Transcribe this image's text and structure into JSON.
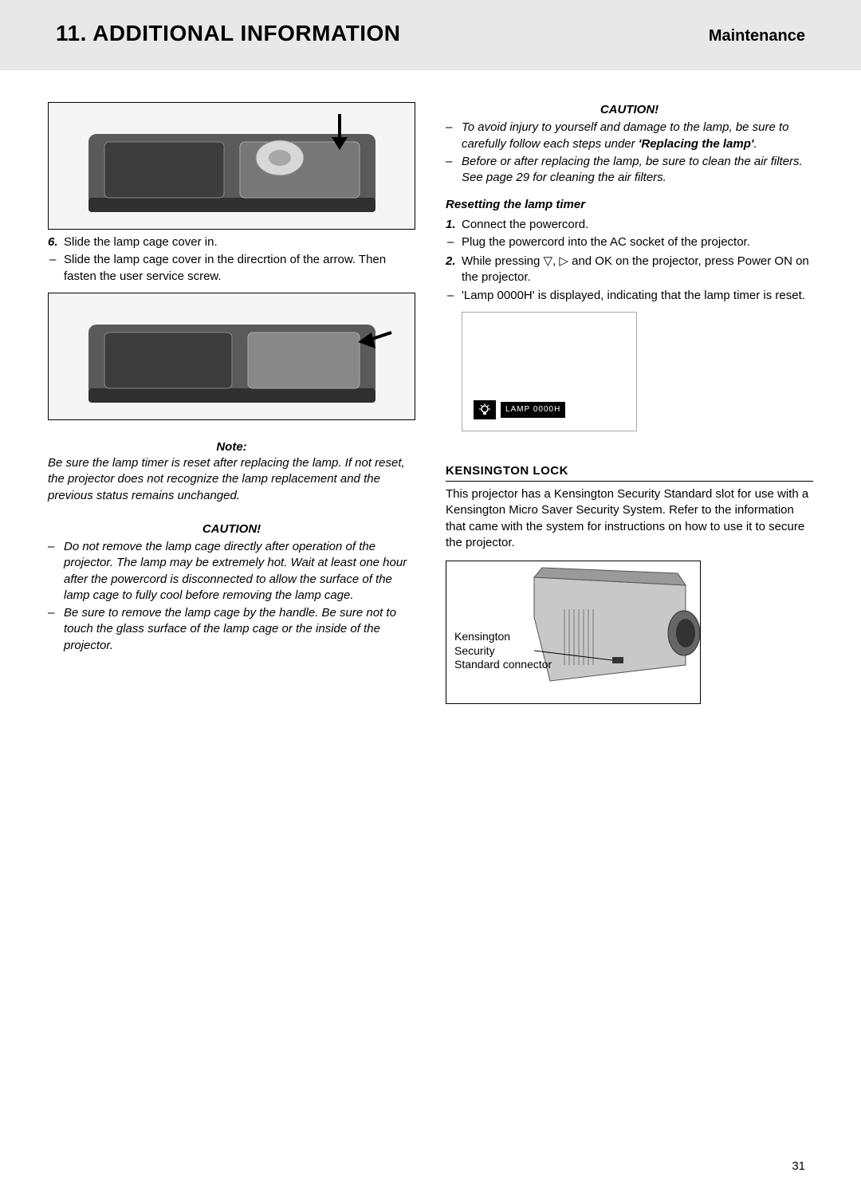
{
  "header": {
    "title": "11. ADDITIONAL INFORMATION",
    "subtitle": "Maintenance"
  },
  "left": {
    "step6": {
      "num": "6.",
      "line1": "Slide the lamp cage cover in.",
      "line2": "Slide the lamp cage cover in the direcrtion of the arrow. Then fasten the user service screw."
    },
    "note": {
      "head": "Note:",
      "body": "Be sure the lamp timer is reset after replacing the lamp. If not reset, the projector does not recognize the lamp replacement and the previous status remains unchanged."
    },
    "caution": {
      "head": "CAUTION!",
      "item1": "Do not remove the lamp cage directly after operation of the projector. The lamp may be extremely hot. Wait at least one hour after the powercord is disconnected to allow the surface of the lamp cage to fully cool before removing the lamp cage.",
      "item2": "Be sure to remove the lamp cage by the handle. Be sure not to touch the glass surface of the lamp cage or the inside of the projector."
    }
  },
  "right": {
    "caution": {
      "head": "CAUTION!",
      "item1_pre": "To avoid injury to yourself and damage to the lamp, be sure to carefully follow each steps under ",
      "item1_bold": "'Replacing the lamp'",
      "item1_post": ".",
      "item2": "Before or after replacing the lamp, be sure to clean the air filters. See page 29 for cleaning the air filters."
    },
    "reset": {
      "head": "Resetting the lamp timer",
      "s1_num": "1.",
      "s1_text": "Connect the powercord.",
      "s1_dash": "Plug the powercord into the AC socket of the projector.",
      "s2_num": "2.",
      "s2_text": "While pressing ▽, ▷ and OK on the projector, press Power ON on the projector.",
      "s2_dash": "'Lamp 0000H' is displayed, indicating that the lamp timer is reset."
    },
    "lamp_badge": "LAMP 0000H",
    "kensington": {
      "head": "KENSINGTON LOCK",
      "body": "This projector has a Kensington Security Standard slot for use with a Kensington Micro Saver Security System. Refer to the information that came with the system for instructions on how to use it to secure the projector.",
      "label": "Kensington Security Standard connector"
    }
  },
  "page_number": "31"
}
